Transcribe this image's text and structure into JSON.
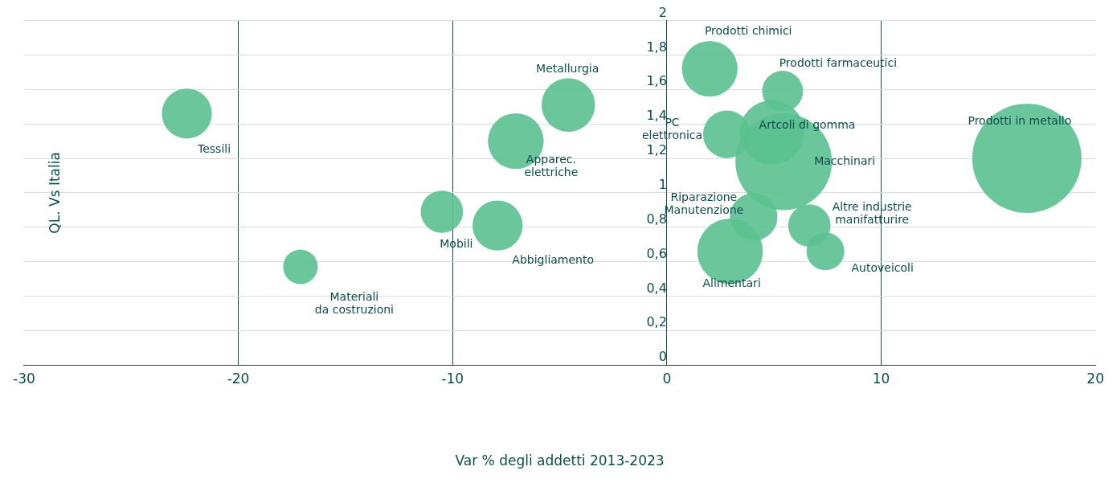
{
  "chart_data": {
    "type": "bubble",
    "xlabel": "Var % degli addetti 2013-2023",
    "ylabel": "QL. Vs Italia",
    "series": [
      {
        "color": "#5bc190",
        "x": [
          -22.4,
          -17.1,
          -10.5,
          -7.9,
          -7.05,
          -4.6,
          2.0,
          5.4,
          2.8,
          4.9,
          5.45,
          16.8,
          4.05,
          6.65,
          7.4,
          2.95
        ],
        "values": [
          1.46,
          0.57,
          0.89,
          0.81,
          1.3,
          1.51,
          1.72,
          1.59,
          1.34,
          1.35,
          1.18,
          1.2,
          0.86,
          0.81,
          0.66,
          0.66
        ],
        "sizes": [
          0.21,
          0.1,
          0.15,
          0.21,
          0.26,
          0.24,
          0.26,
          0.14,
          0.19,
          0.35,
          0.78,
          1,
          0.19,
          0.15,
          0.12,
          0.36
        ]
      }
    ],
    "xlim": [
      -30,
      20
    ],
    "xticks": [
      -30,
      -20,
      -10,
      0,
      10,
      20
    ],
    "ylim": [
      0,
      2
    ],
    "yticks": [
      0,
      {
        "value": 0.2,
        "label": "0,2"
      },
      {
        "value": 0.4,
        "label": "0,4"
      },
      {
        "value": 0.6,
        "label": "0,6"
      },
      {
        "value": 0.8,
        "label": "0,8"
      },
      1,
      {
        "value": 1.2,
        "label": "1,2"
      },
      {
        "value": 1.4,
        "label": "1,4"
      },
      {
        "value": 1.6,
        "label": "1,6"
      },
      {
        "value": 1.8,
        "label": "1,8"
      },
      2
    ],
    "grid": true,
    "annotations": [
      {
        "text": "Tessili",
        "x": -22.4,
        "y": 1.46
      },
      {
        "text": "Materiali\nda costruzioni",
        "x": -17.1,
        "y": 0.57
      },
      {
        "text": "Mobili",
        "x": -10.5,
        "y": 0.89
      },
      {
        "text": "Abbigliamento",
        "x": -7.9,
        "y": 0.81
      },
      {
        "text": "Apparec.\nelettriche",
        "x": -7.05,
        "y": 1.3
      },
      {
        "text": "Metallurgia",
        "x": -4.6,
        "y": 1.51
      },
      {
        "text": "Prodotti chimici",
        "x": 2.0,
        "y": 1.72
      },
      {
        "text": "Prodotti farmaceutici",
        "x": 5.4,
        "y": 1.59
      },
      {
        "text": "PC\nelettronica",
        "x": 2.8,
        "y": 1.34
      },
      {
        "text": "Artcoli di gomma",
        "x": 4.9,
        "y": 1.35
      },
      {
        "text": "Macchinari",
        "x": 5.45,
        "y": 1.18
      },
      {
        "text": "Prodotti in metallo",
        "x": 16.8,
        "y": 1.2
      },
      {
        "text": "Riparazione\nManutenzione",
        "x": 4.05,
        "y": 0.86
      },
      {
        "text": "Altre industrie\nmanifatturire",
        "x": 6.65,
        "y": 0.81
      },
      {
        "text": "Autoveicoli",
        "x": 7.4,
        "y": 0.66
      },
      {
        "text": "Alimentari",
        "x": 2.95,
        "y": 0.66
      }
    ]
  }
}
